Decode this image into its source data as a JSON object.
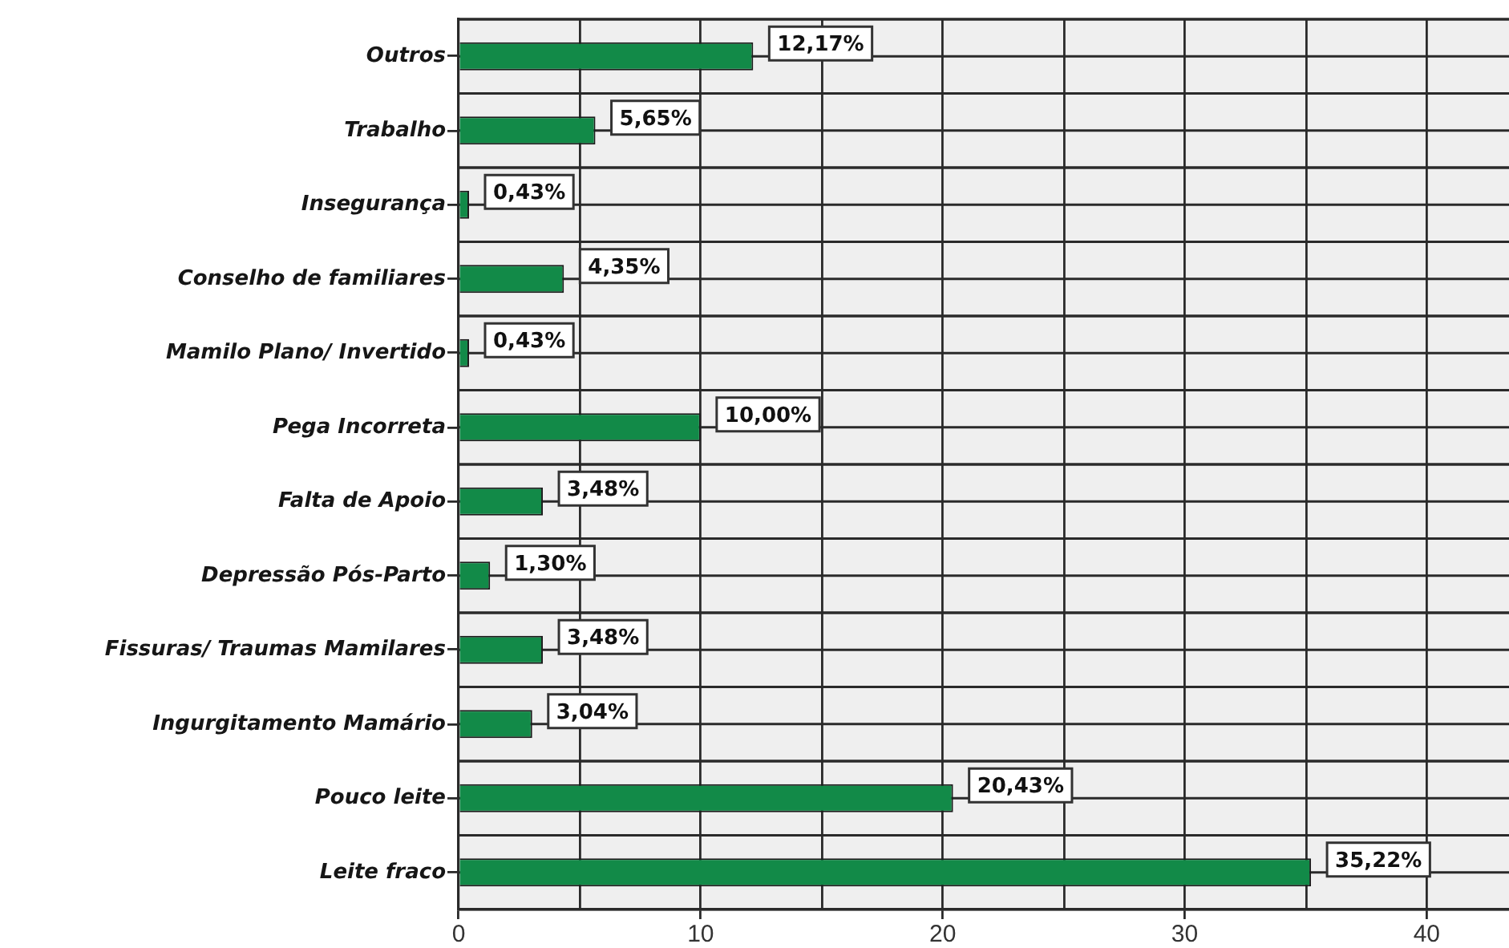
{
  "chart_data": {
    "type": "bar",
    "orientation": "horizontal",
    "categories": [
      "Outros",
      "Trabalho",
      "Insegurança",
      "Conselho de familiares",
      "Mamilo Plano/ Invertido",
      "Pega Incorreta",
      "Falta de Apoio",
      "Depressão Pós-Parto",
      "Fissuras/ Traumas Mamilares",
      "Ingurgitamento Mamário",
      "Pouco leite",
      "Leite fraco"
    ],
    "values": [
      12.17,
      5.65,
      0.43,
      4.35,
      0.43,
      10,
      3.48,
      1.3,
      3.48,
      3.04,
      20.43,
      35.22
    ],
    "value_labels": [
      "12,17%",
      "5,65%",
      "0,43%",
      "4,35%",
      "0,43%",
      "10,00%",
      "3,48%",
      "1,30%",
      "3,48%",
      "3,04%",
      "20,43%",
      "35,22%"
    ],
    "color": "#128a48",
    "xlim": [
      0,
      43.4
    ],
    "xticks": [
      0,
      {
        "value": 5,
        "label": null
      },
      10,
      {
        "value": 15,
        "label": null
      },
      20,
      {
        "value": 25,
        "label": null
      },
      30,
      {
        "value": 35,
        "label": null
      },
      40
    ],
    "grid": true
  }
}
